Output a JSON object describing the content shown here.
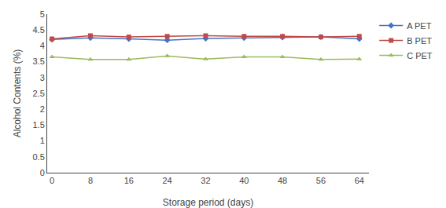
{
  "chart_data": {
    "type": "line",
    "xlabel": "Storage period (days)",
    "ylabel": "Alcohol Contents (%)",
    "x": [
      0,
      8,
      16,
      24,
      32,
      40,
      48,
      56,
      64
    ],
    "series": [
      {
        "name": "A PET",
        "color": "#4472C4",
        "marker": "diamond",
        "values": [
          4.2,
          4.25,
          4.22,
          4.18,
          4.23,
          4.25,
          4.27,
          4.28,
          4.22
        ]
      },
      {
        "name": "B PET",
        "color": "#BE4B48",
        "marker": "square",
        "values": [
          4.22,
          4.32,
          4.28,
          4.3,
          4.32,
          4.3,
          4.3,
          4.28,
          4.3
        ]
      },
      {
        "name": "C PET",
        "color": "#9BBB59",
        "marker": "triangle-up",
        "values": [
          3.65,
          3.57,
          3.57,
          3.68,
          3.58,
          3.65,
          3.65,
          3.57,
          3.58
        ]
      }
    ],
    "xlim": [
      -1,
      66
    ],
    "xticks": [
      0,
      8,
      16,
      24,
      32,
      40,
      48,
      56,
      64
    ],
    "ylim": [
      0,
      5
    ],
    "yticks": [
      0,
      0.5,
      1,
      1.5,
      2,
      2.5,
      3,
      3.5,
      4,
      4.5,
      5
    ],
    "grid": false,
    "legend": "right"
  }
}
